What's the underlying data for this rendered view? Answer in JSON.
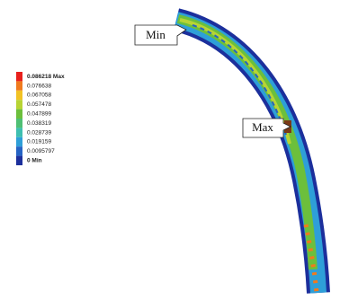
{
  "legend": {
    "entries": [
      {
        "label": "0.086218 Max",
        "color": "#e8201c"
      },
      {
        "label": "0.076638",
        "color": "#f07a1e"
      },
      {
        "label": "0.067058",
        "color": "#f2c224"
      },
      {
        "label": "0.057478",
        "color": "#b8d434"
      },
      {
        "label": "0.047899",
        "color": "#6cbf3c"
      },
      {
        "label": "0.038319",
        "color": "#4fbf74"
      },
      {
        "label": "0.028739",
        "color": "#3fbfb0"
      },
      {
        "label": "0.019159",
        "color": "#2e9fd8"
      },
      {
        "label": "0.0095797",
        "color": "#2563c4"
      },
      {
        "label": "0 Min",
        "color": "#1c2f9c"
      }
    ]
  },
  "callouts": {
    "min": "Min",
    "max": "Max"
  }
}
